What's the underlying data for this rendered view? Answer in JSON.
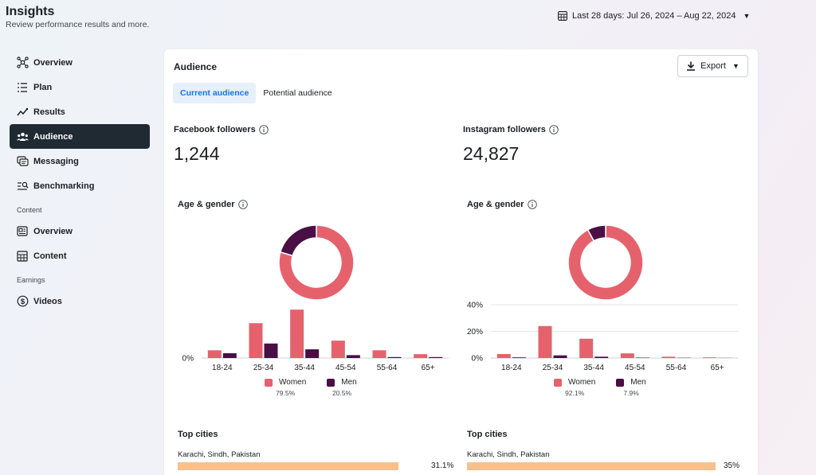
{
  "header": {
    "title": "Insights",
    "subtitle": "Review performance results and more.",
    "date_range": "Last 28 days: Jul 26, 2024 – Aug 22, 2024"
  },
  "sidebar": {
    "items": [
      {
        "label": "Overview",
        "icon": "network-icon"
      },
      {
        "label": "Plan",
        "icon": "list-icon"
      },
      {
        "label": "Results",
        "icon": "trend-icon"
      },
      {
        "label": "Audience",
        "icon": "people-icon",
        "active": true
      },
      {
        "label": "Messaging",
        "icon": "message-icon"
      },
      {
        "label": "Benchmarking",
        "icon": "benchmark-icon"
      }
    ],
    "content_section": "Content",
    "content_items": [
      {
        "label": "Overview",
        "icon": "content-overview-icon"
      },
      {
        "label": "Content",
        "icon": "grid-icon"
      }
    ],
    "earnings_section": "Earnings",
    "earnings_items": [
      {
        "label": "Videos",
        "icon": "dollar-icon"
      }
    ]
  },
  "card": {
    "title": "Audience",
    "export_label": "Export",
    "tabs": [
      "Current audience",
      "Potential audience"
    ]
  },
  "colors": {
    "women": "#e5626d",
    "men": "#4a0f44",
    "city_bar": "#f8c08c",
    "active_nav": "#1f2a33",
    "tab_active": "#1b74e4"
  },
  "facebook": {
    "followers_label": "Facebook followers",
    "followers_value": "1,244",
    "age_gender_label": "Age & gender",
    "women_label": "Women",
    "women_pct": "79.5%",
    "men_label": "Men",
    "men_pct": "20.5%",
    "top_cities_label": "Top cities",
    "city": "Karachi, Sindh, Pakistan",
    "city_pct": "31.1%",
    "city_fraction": 0.311
  },
  "instagram": {
    "followers_label": "Instagram followers",
    "followers_value": "24,827",
    "age_gender_label": "Age & gender",
    "women_label": "Women",
    "women_pct": "92.1%",
    "men_label": "Men",
    "men_pct": "7.9%",
    "top_cities_label": "Top cities",
    "city": "Karachi, Sindh, Pakistan",
    "city_pct": "35%",
    "city_fraction": 0.35
  },
  "chart_data": [
    {
      "type": "bar",
      "name": "facebook-age-gender",
      "categories": [
        "18-24",
        "25-34",
        "35-44",
        "45-54",
        "55-64",
        "65+"
      ],
      "series": [
        {
          "name": "Women",
          "values": [
            4,
            18,
            25,
            9,
            4,
            2
          ]
        },
        {
          "name": "Men",
          "values": [
            2.5,
            7.5,
            4.5,
            1.5,
            0.5,
            0.5
          ]
        }
      ],
      "yticks": [
        "0%"
      ],
      "ylim": [
        0,
        30
      ],
      "donut": {
        "Women": 79.5,
        "Men": 20.5
      }
    },
    {
      "type": "bar",
      "name": "instagram-age-gender",
      "categories": [
        "18-24",
        "25-34",
        "35-44",
        "45-54",
        "55-64",
        "65+"
      ],
      "series": [
        {
          "name": "Women",
          "values": [
            3,
            24,
            14.5,
            3.5,
            1,
            0.5
          ]
        },
        {
          "name": "Men",
          "values": [
            0.5,
            2,
            1,
            0.3,
            0.2,
            0.1
          ]
        }
      ],
      "yticks": [
        "0%",
        "20%",
        "40%"
      ],
      "ylim": [
        0,
        40
      ],
      "donut": {
        "Women": 92.1,
        "Men": 7.9
      }
    }
  ]
}
